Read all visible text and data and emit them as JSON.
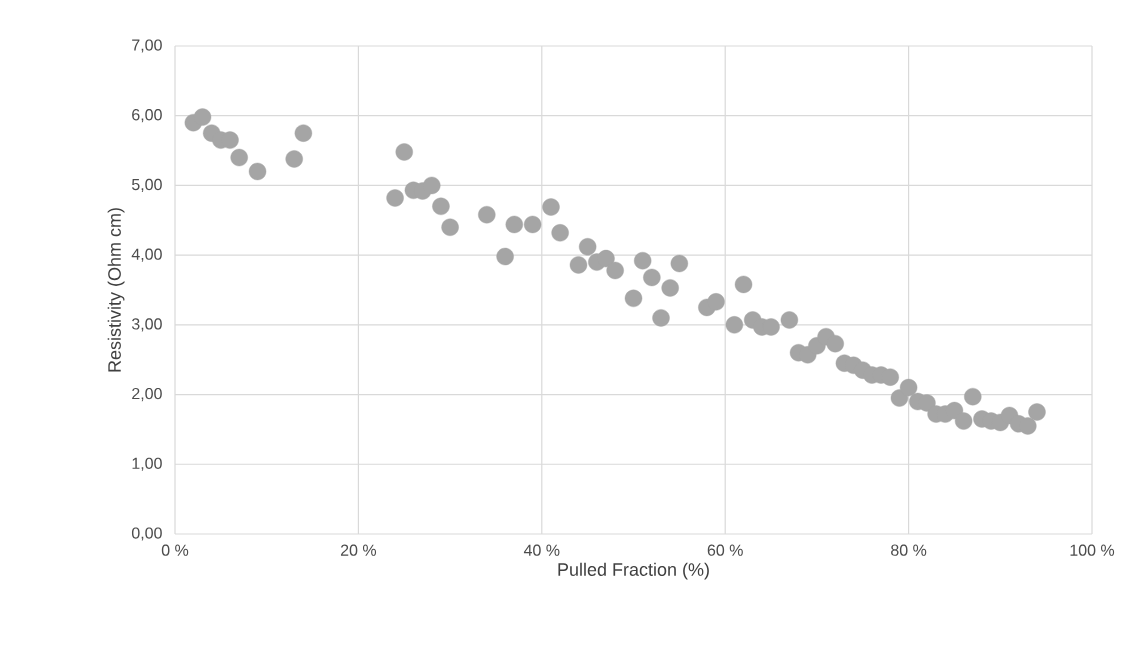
{
  "chart_data": {
    "type": "scatter",
    "xlabel": "Pulled Fraction (%)",
    "ylabel": "Resistivity (Ohm cm)",
    "x": [
      2,
      3,
      4,
      5,
      6,
      7,
      9,
      13,
      14,
      24,
      25,
      26,
      27,
      28,
      29,
      30,
      34,
      36,
      37,
      39,
      41,
      42,
      44,
      45,
      46,
      47,
      48,
      50,
      51,
      52,
      53,
      54,
      55,
      58,
      59,
      61,
      62,
      63,
      64,
      65,
      67,
      68,
      69,
      70,
      71,
      72,
      73,
      74,
      75,
      76,
      77,
      78,
      79,
      80,
      81,
      82,
      83,
      84,
      85,
      86,
      87,
      88,
      89,
      90,
      91,
      92,
      93,
      94
    ],
    "values": [
      5.9,
      5.98,
      5.75,
      5.65,
      5.65,
      5.4,
      5.2,
      5.38,
      5.75,
      4.82,
      5.48,
      4.93,
      4.92,
      5.0,
      4.7,
      4.4,
      4.58,
      3.98,
      4.44,
      4.44,
      4.69,
      4.32,
      3.86,
      4.12,
      3.9,
      3.95,
      3.78,
      3.38,
      3.92,
      3.68,
      3.1,
      3.53,
      3.88,
      3.25,
      3.33,
      3.0,
      3.58,
      3.07,
      2.97,
      2.97,
      3.07,
      2.6,
      2.57,
      2.7,
      2.83,
      2.73,
      2.45,
      2.42,
      2.35,
      2.28,
      2.28,
      2.25,
      1.95,
      2.1,
      1.9,
      1.88,
      1.72,
      1.72,
      1.77,
      1.62,
      1.97,
      1.65,
      1.62,
      1.6,
      1.7,
      1.58,
      1.55,
      1.75
    ],
    "color": "#a5a5a5",
    "marker": "circle",
    "grid": true,
    "xlim": [
      0,
      100
    ],
    "ylim": [
      0,
      7
    ],
    "xticks": [
      {
        "value": 0,
        "label": "0 %"
      },
      {
        "value": 20,
        "label": "20 %"
      },
      {
        "value": 40,
        "label": "40 %"
      },
      {
        "value": 60,
        "label": "60 %"
      },
      {
        "value": 80,
        "label": "80 %"
      },
      {
        "value": 100,
        "label": "100 %"
      }
    ],
    "yticks": [
      {
        "value": 0,
        "label": "0,00"
      },
      {
        "value": 1,
        "label": "1,00"
      },
      {
        "value": 2,
        "label": "2,00"
      },
      {
        "value": 3,
        "label": "3,00"
      },
      {
        "value": 4,
        "label": "4,00"
      },
      {
        "value": 5,
        "label": "5,00"
      },
      {
        "value": 6,
        "label": "6,00"
      },
      {
        "value": 7,
        "label": "7,00"
      }
    ]
  }
}
